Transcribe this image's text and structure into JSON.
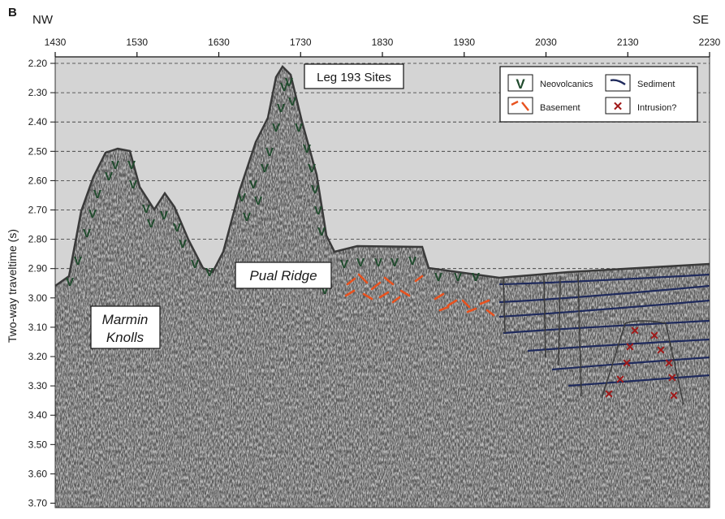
{
  "figure": {
    "panel_label": "B",
    "direction_left": "NW",
    "direction_right": "SE",
    "title_box": "Leg 193 Sites",
    "y_axis_label": "Two-way traveltime (s)",
    "x_ticks": [
      "1430",
      "1530",
      "1630",
      "1730",
      "1830",
      "1930",
      "2030",
      "2130",
      "2230"
    ],
    "y_ticks": [
      "2.20",
      "2.30",
      "2.40",
      "2.50",
      "2.60",
      "2.70",
      "2.80",
      "2.90",
      "3.00",
      "3.10",
      "3.20",
      "3.30",
      "3.40",
      "3.50",
      "3.60",
      "3.70"
    ],
    "labels": {
      "marmin_line1": "Marmin",
      "marmin_line2": "Knolls",
      "pual": "Pual Ridge"
    },
    "legend": {
      "neovolcanics": "Neovolcanics",
      "sediment": "Sediment",
      "basement": "Basement",
      "intrusion": "Intrusion?"
    },
    "colors": {
      "neovolcanics": "#1f4a2c",
      "basement": "#e8521f",
      "sediment": "#1f2a5c",
      "intrusion": "#a01818",
      "outline": "#3a3a3a",
      "water": "#d4d4d4"
    }
  }
}
